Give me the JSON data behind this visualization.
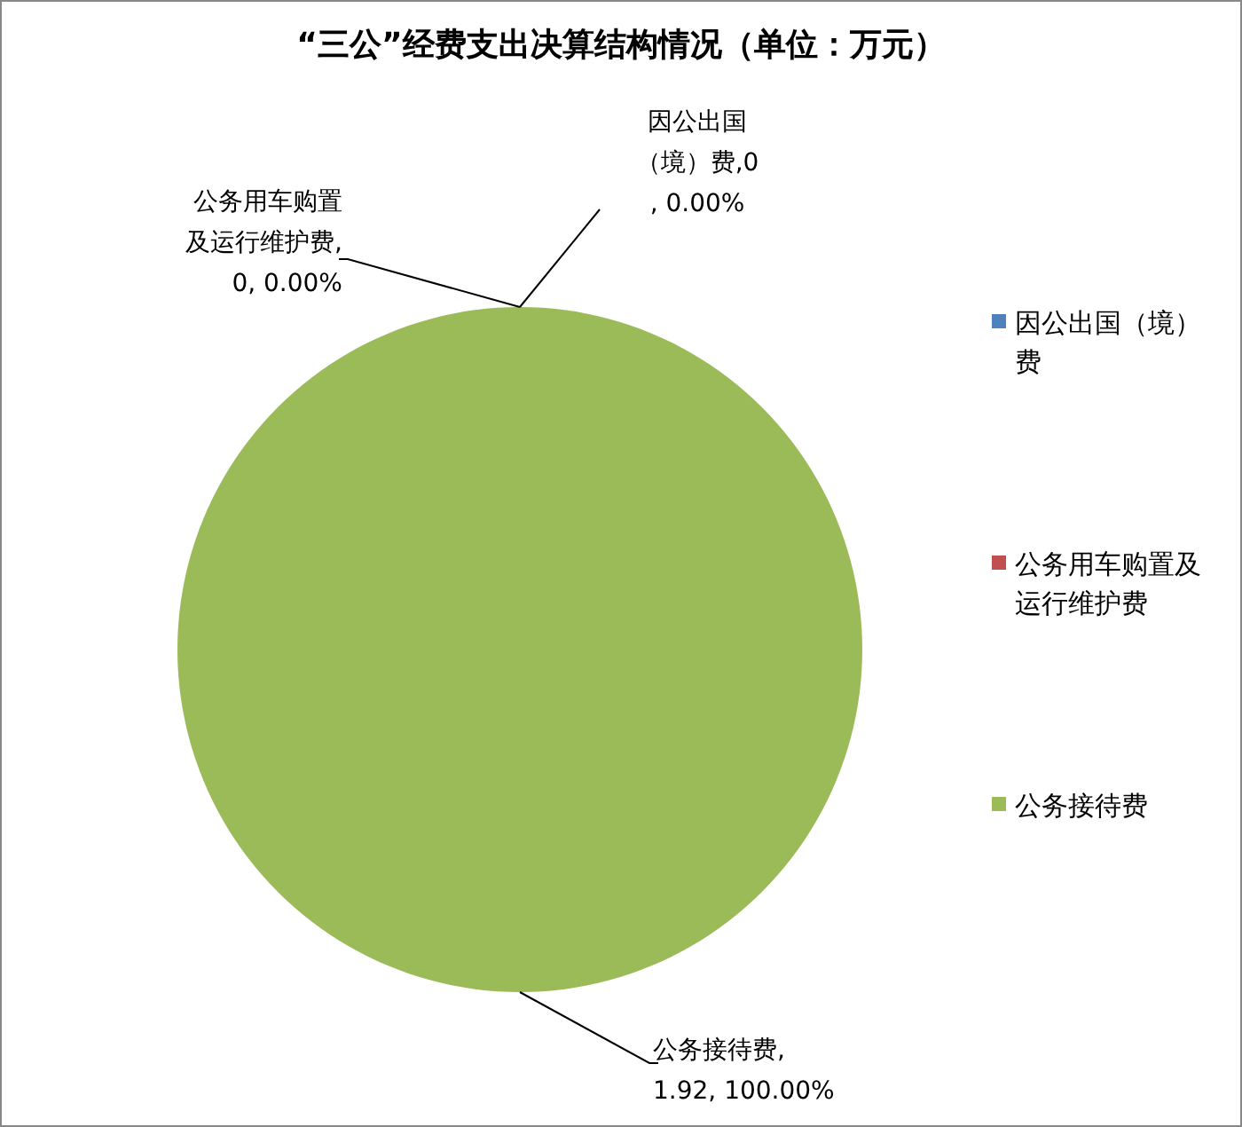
{
  "chart_data": {
    "type": "pie",
    "title": "“三公”经费支出决算结构情况（单位：万元）",
    "categories": [
      "因公出国（境）费",
      "公务用车购置及运行维护费",
      "公务接待费"
    ],
    "values": [
      0,
      0,
      1.92
    ],
    "colors": [
      "#4f81bd",
      "#c0504d",
      "#9bbb59"
    ],
    "value_labels": [
      "因公出国（境）费,0, 0.00%",
      "公务用车购置及运行维护费, 0, 0.00%",
      "公务接待费, 1.92, 100.00%"
    ],
    "legend": "right"
  }
}
